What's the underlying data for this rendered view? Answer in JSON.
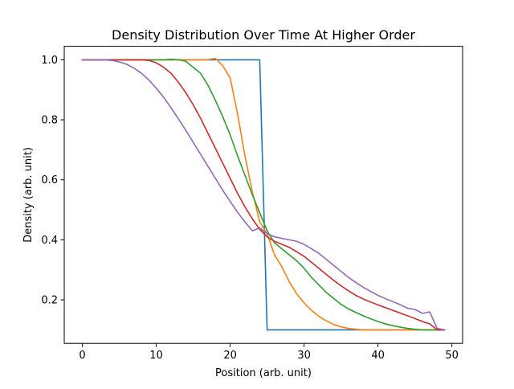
{
  "chart_data": {
    "type": "line",
    "title": "Density Distribution Over Time At Higher Order",
    "xlabel": "Position (arb. unit)",
    "ylabel": "Density (arb. unit)",
    "xlim": [
      -2.45,
      51.45
    ],
    "ylim": [
      0.055,
      1.045
    ],
    "xticks": [
      0,
      10,
      20,
      30,
      40,
      50
    ],
    "yticks": [
      0.2,
      0.4,
      0.6,
      0.8,
      1.0
    ],
    "xtick_labels": [
      "0",
      "10",
      "20",
      "30",
      "40",
      "50"
    ],
    "ytick_labels": [
      "0.2",
      "0.4",
      "0.6",
      "0.8",
      "1.0"
    ],
    "grid": false,
    "legend": "none",
    "series": [
      {
        "color": "#1f77b4",
        "x": [
          0,
          1,
          2,
          3,
          4,
          5,
          6,
          7,
          8,
          9,
          10,
          11,
          12,
          13,
          14,
          15,
          16,
          17,
          18,
          19,
          20,
          21,
          22,
          23,
          24,
          25,
          26,
          27,
          28,
          29,
          30,
          31,
          32,
          33,
          34,
          35,
          36,
          37,
          38,
          39,
          40,
          41,
          42,
          43,
          44,
          45,
          46,
          47,
          48,
          49
        ],
        "y": [
          1,
          1,
          1,
          1,
          1,
          1,
          1,
          1,
          1,
          1,
          1,
          1,
          1,
          1,
          1,
          1,
          1,
          1,
          1,
          1,
          1,
          1,
          1,
          1,
          1,
          0.1,
          0.1,
          0.1,
          0.1,
          0.1,
          0.1,
          0.1,
          0.1,
          0.1,
          0.1,
          0.1,
          0.1,
          0.1,
          0.1,
          0.1,
          0.1,
          0.1,
          0.1,
          0.1,
          0.1,
          0.1,
          0.1,
          0.1,
          0.1,
          0.1
        ]
      },
      {
        "color": "#ff7f0e",
        "x": [
          0,
          1,
          2,
          3,
          4,
          5,
          6,
          7,
          8,
          9,
          10,
          11,
          12,
          13,
          14,
          15,
          16,
          17,
          18,
          19,
          20,
          21,
          22,
          23,
          24,
          25,
          26,
          27,
          28,
          29,
          30,
          31,
          32,
          33,
          34,
          35,
          36,
          37,
          38,
          39,
          40,
          41,
          42,
          43,
          44,
          45,
          46,
          47,
          48,
          49
        ],
        "y": [
          1,
          1,
          1,
          1,
          1,
          1,
          1,
          1,
          1,
          1,
          1,
          1,
          1,
          1,
          1,
          1,
          1,
          1.0,
          1.005,
          0.98,
          0.94,
          0.82,
          0.68,
          0.56,
          0.46,
          0.42,
          0.35,
          0.31,
          0.26,
          0.22,
          0.19,
          0.165,
          0.145,
          0.13,
          0.118,
          0.11,
          0.105,
          0.102,
          0.1,
          0.1,
          0.1,
          0.1,
          0.1,
          0.1,
          0.1,
          0.1,
          0.1,
          0.1,
          0.1,
          0.1
        ]
      },
      {
        "color": "#2ca02c",
        "x": [
          0,
          1,
          2,
          3,
          4,
          5,
          6,
          7,
          8,
          9,
          10,
          11,
          12,
          13,
          14,
          15,
          16,
          17,
          18,
          19,
          20,
          21,
          22,
          23,
          24,
          25,
          26,
          27,
          28,
          29,
          30,
          31,
          32,
          33,
          34,
          35,
          36,
          37,
          38,
          39,
          40,
          41,
          42,
          43,
          44,
          45,
          46,
          47,
          48,
          49
        ],
        "y": [
          1,
          1,
          1,
          1,
          1,
          1,
          1,
          1,
          1,
          1,
          1,
          1,
          1.002,
          1.0,
          0.995,
          0.975,
          0.955,
          0.915,
          0.865,
          0.81,
          0.75,
          0.68,
          0.615,
          0.55,
          0.49,
          0.43,
          0.39,
          0.37,
          0.35,
          0.33,
          0.305,
          0.275,
          0.25,
          0.225,
          0.205,
          0.185,
          0.17,
          0.158,
          0.147,
          0.137,
          0.128,
          0.12,
          0.114,
          0.109,
          0.105,
          0.102,
          0.1,
          0.1,
          0.1,
          0.1
        ]
      },
      {
        "color": "#d62728",
        "x": [
          0,
          1,
          2,
          3,
          4,
          5,
          6,
          7,
          8,
          9,
          10,
          11,
          12,
          13,
          14,
          15,
          16,
          17,
          18,
          19,
          20,
          21,
          22,
          23,
          24,
          25,
          26,
          27,
          28,
          29,
          30,
          31,
          32,
          33,
          34,
          35,
          36,
          37,
          38,
          39,
          40,
          41,
          42,
          43,
          44,
          45,
          46,
          47,
          48,
          49
        ],
        "y": [
          1,
          1,
          1,
          1,
          1,
          1,
          1,
          1,
          1,
          0.998,
          0.99,
          0.975,
          0.955,
          0.925,
          0.89,
          0.85,
          0.805,
          0.755,
          0.705,
          0.655,
          0.605,
          0.555,
          0.51,
          0.47,
          0.435,
          0.41,
          0.395,
          0.385,
          0.375,
          0.36,
          0.345,
          0.325,
          0.305,
          0.285,
          0.265,
          0.247,
          0.23,
          0.215,
          0.203,
          0.193,
          0.183,
          0.174,
          0.165,
          0.156,
          0.147,
          0.138,
          0.128,
          0.12,
          0.1,
          0.1
        ]
      },
      {
        "color": "#9467bd",
        "x": [
          0,
          1,
          2,
          3,
          4,
          5,
          6,
          7,
          8,
          9,
          10,
          11,
          12,
          13,
          14,
          15,
          16,
          17,
          18,
          19,
          20,
          21,
          22,
          23,
          24,
          25,
          26,
          27,
          28,
          29,
          30,
          31,
          32,
          33,
          34,
          35,
          36,
          37,
          38,
          39,
          40,
          41,
          42,
          43,
          44,
          45,
          46,
          47,
          48,
          49
        ],
        "y": [
          1,
          1,
          1,
          1,
          0.998,
          0.993,
          0.985,
          0.972,
          0.955,
          0.933,
          0.905,
          0.875,
          0.84,
          0.803,
          0.765,
          0.725,
          0.685,
          0.645,
          0.605,
          0.565,
          0.528,
          0.492,
          0.46,
          0.43,
          0.44,
          0.42,
          0.41,
          0.405,
          0.4,
          0.395,
          0.385,
          0.37,
          0.355,
          0.335,
          0.315,
          0.295,
          0.275,
          0.258,
          0.242,
          0.228,
          0.215,
          0.204,
          0.194,
          0.184,
          0.172,
          0.168,
          0.155,
          0.16,
          0.105,
          0.1
        ]
      }
    ]
  }
}
